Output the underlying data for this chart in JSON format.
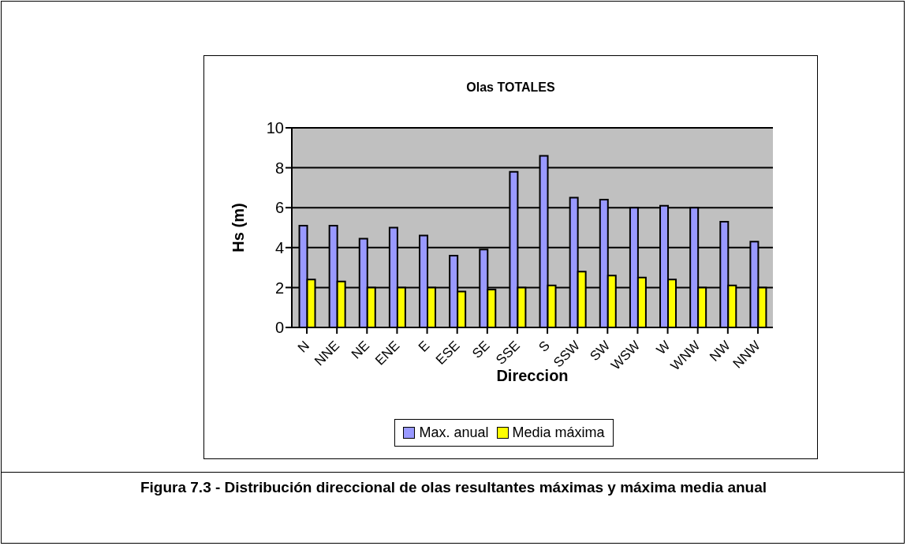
{
  "chart_data": {
    "type": "bar",
    "title": "Olas TOTALES",
    "xlabel": "Direccion",
    "ylabel": "Hs (m)",
    "categories": [
      "N",
      "NNE",
      "NE",
      "ENE",
      "E",
      "ESE",
      "SE",
      "SSE",
      "S",
      "SSW",
      "SW",
      "WSW",
      "W",
      "WNW",
      "NW",
      "NNW"
    ],
    "series": [
      {
        "name": "Max. anual",
        "color": "#9999ff",
        "values": [
          5.1,
          5.1,
          4.45,
          5.0,
          4.6,
          3.6,
          3.9,
          7.8,
          8.6,
          6.5,
          6.4,
          6.0,
          6.1,
          6.0,
          5.3,
          4.3
        ]
      },
      {
        "name": "Media máxima",
        "color": "#ffff00",
        "values": [
          2.4,
          2.3,
          2.0,
          2.0,
          2.0,
          1.8,
          1.9,
          2.0,
          2.1,
          2.8,
          2.6,
          2.5,
          2.4,
          2.0,
          2.1,
          2.0
        ]
      }
    ],
    "ylim": [
      0,
      10
    ],
    "yticks": [
      0,
      2,
      4,
      6,
      8,
      10
    ],
    "grid": "y",
    "legend": "bottom",
    "annotations": [
      "Figura 7.3 - Distribución direccional de olas resultantes  máximas y máxima  media anual"
    ]
  }
}
